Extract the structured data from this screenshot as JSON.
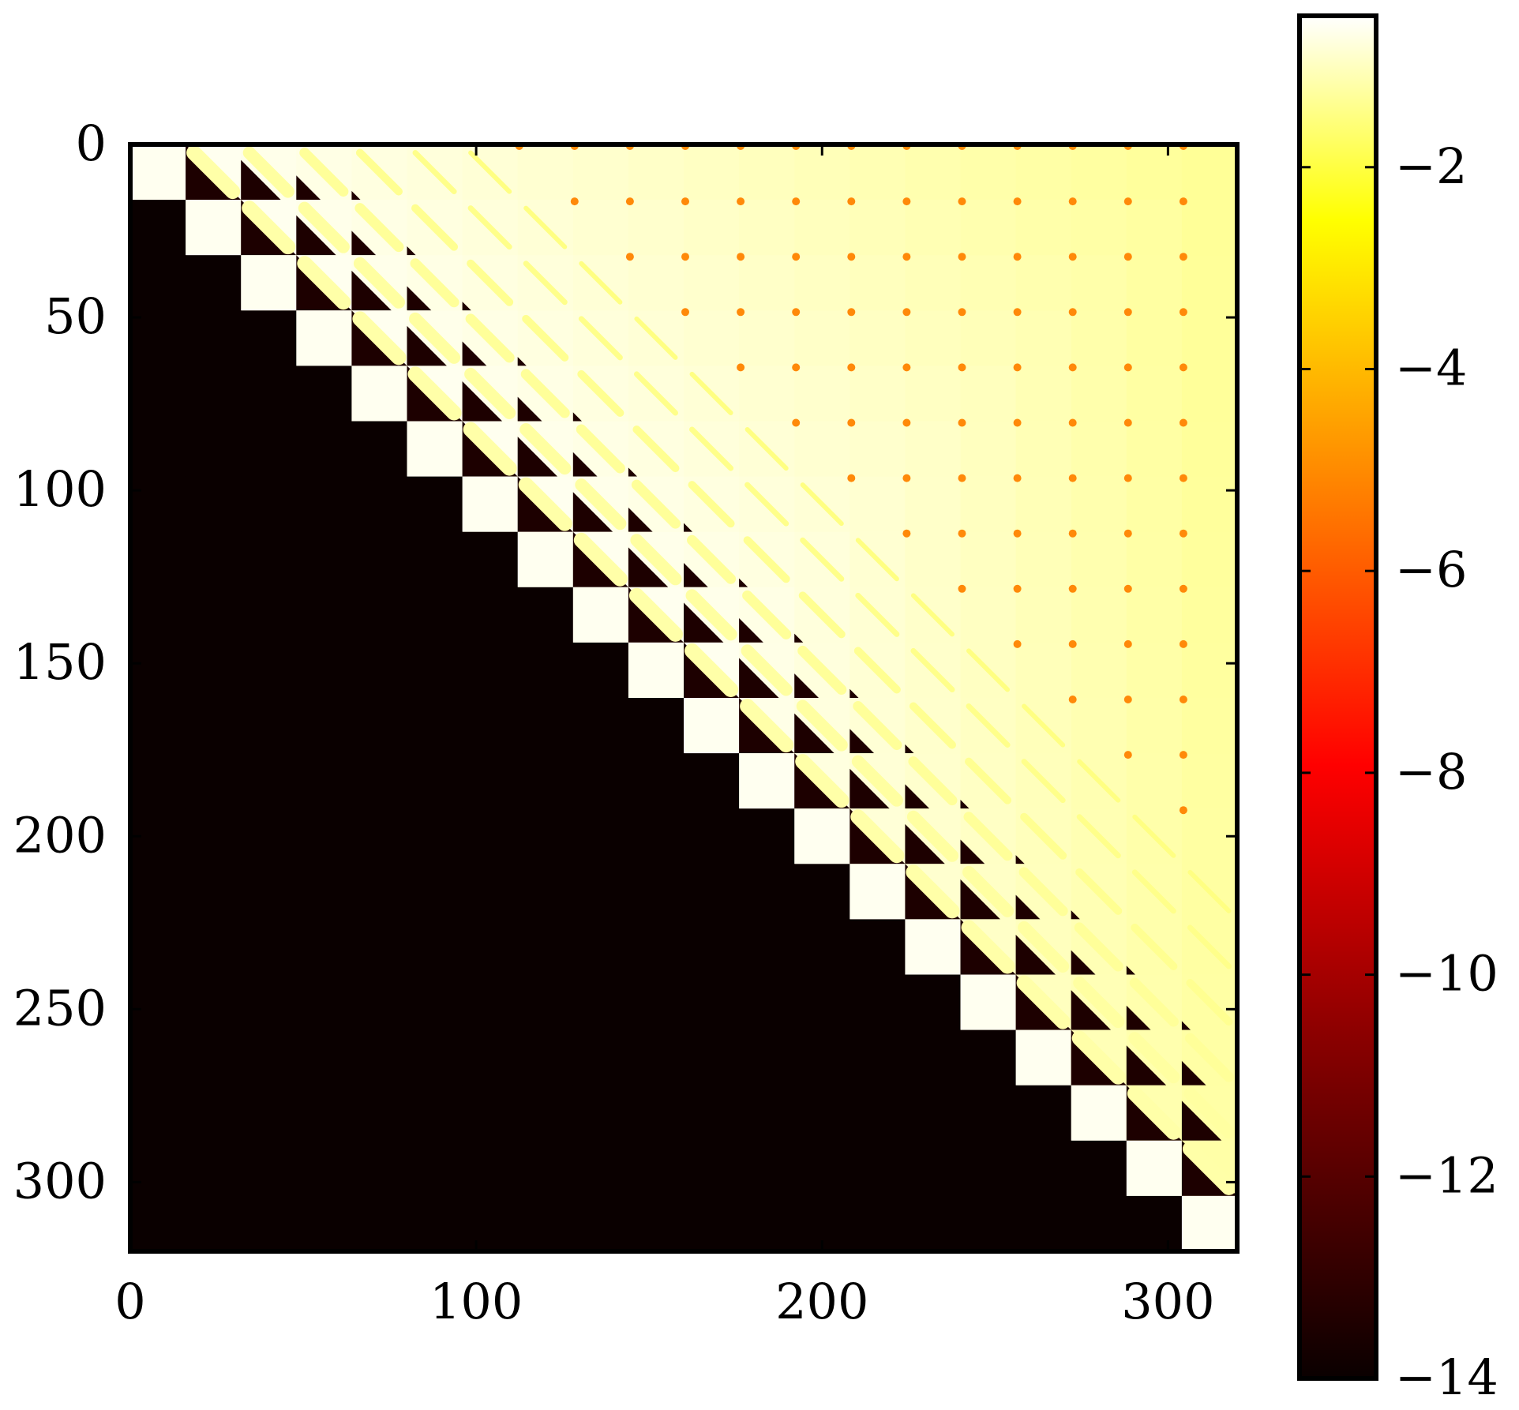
{
  "chart_data": {
    "type": "heatmap",
    "title": "",
    "xlabel": "",
    "ylabel": "",
    "size": 320,
    "block_size": 16,
    "xlim": [
      0,
      320
    ],
    "ylim": [
      320,
      0
    ],
    "x_ticks": [
      0,
      100,
      200,
      300
    ],
    "y_ticks": [
      0,
      50,
      100,
      150,
      200,
      250,
      300
    ],
    "x_tick_labels": [
      "0",
      "100",
      "200",
      "300"
    ],
    "y_tick_labels": [
      "0",
      "50",
      "100",
      "150",
      "200",
      "250",
      "300"
    ],
    "colorbar": {
      "range": [
        -14,
        -0.5
      ],
      "ticks": [
        -2,
        -4,
        -6,
        -8,
        -10,
        -12,
        -14
      ],
      "tick_labels": [
        "−2",
        "−4",
        "−6",
        "−8",
        "−10",
        "−12",
        "−14"
      ],
      "colormap": "afmhot",
      "colormap_stops": [
        "#0a0000",
        "#8a0000",
        "#ff0000",
        "#ff8000",
        "#ffff00",
        "#ffffff"
      ]
    },
    "structure": {
      "lower_triangle_value": -14,
      "upper_far_value": -5.5,
      "near_diagonal_value": -0.8,
      "banded_offdiagonal_blocks": 6
    },
    "grid": false,
    "legend": "colorbar-right"
  }
}
